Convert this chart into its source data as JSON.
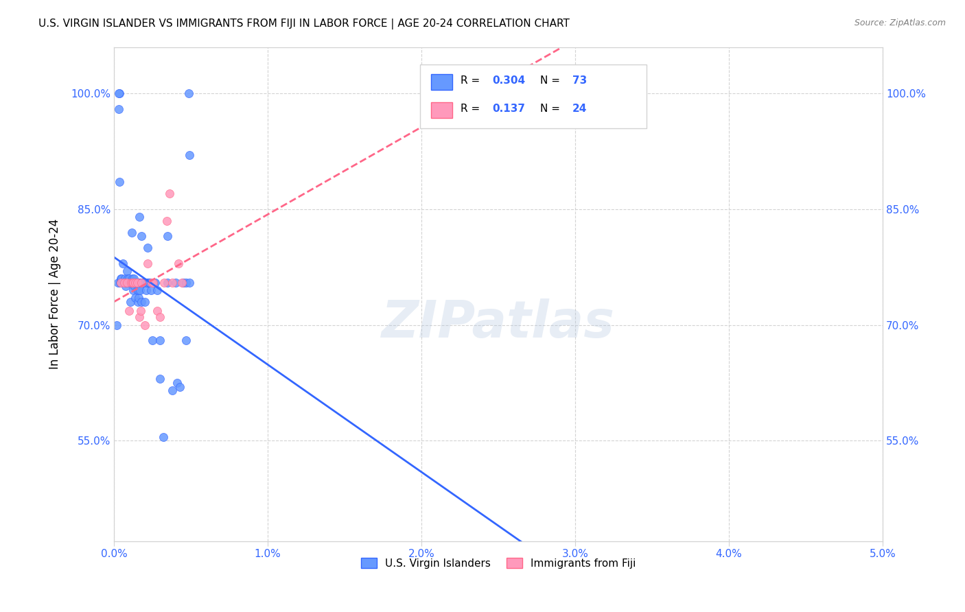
{
  "title": "U.S. VIRGIN ISLANDER VS IMMIGRANTS FROM FIJI IN LABOR FORCE | AGE 20-24 CORRELATION CHART",
  "source": "Source: ZipAtlas.com",
  "ylabel": "In Labor Force | Age 20-24",
  "xlim": [
    0.0,
    0.05
  ],
  "ylim": [
    0.42,
    1.06
  ],
  "x_ticks": [
    0.0,
    0.01,
    0.02,
    0.03,
    0.04,
    0.05
  ],
  "x_tick_labels": [
    "0.0%",
    "1.0%",
    "2.0%",
    "3.0%",
    "4.0%",
    "5.0%"
  ],
  "y_ticks": [
    0.55,
    0.7,
    0.85,
    1.0
  ],
  "y_tick_labels": [
    "55.0%",
    "70.0%",
    "85.0%",
    "100.0%"
  ],
  "blue_color": "#6699ff",
  "pink_color": "#ff99bb",
  "blue_line_color": "#3366ff",
  "pink_line_color": "#ff6688",
  "R_blue": 0.304,
  "N_blue": 73,
  "R_pink": 0.137,
  "N_pink": 24,
  "legend_label_blue": "U.S. Virgin Islanders",
  "legend_label_pink": "Immigrants from Fiji",
  "watermark": "ZIPatlas",
  "blue_x": [
    0.00018,
    0.00025,
    0.0003,
    0.00035,
    0.0004,
    0.00045,
    0.0005,
    0.0006,
    0.0007,
    0.00075,
    0.0008,
    0.0008,
    0.00085,
    0.0009,
    0.001,
    0.001,
    0.00105,
    0.0011,
    0.00115,
    0.0012,
    0.0012,
    0.00125,
    0.0013,
    0.0013,
    0.00135,
    0.0014,
    0.0014,
    0.00145,
    0.0015,
    0.0015,
    0.00155,
    0.0016,
    0.0016,
    0.00165,
    0.0017,
    0.0017,
    0.00175,
    0.0018,
    0.0018,
    0.00185,
    0.0019,
    0.002,
    0.002,
    0.0021,
    0.0022,
    0.0022,
    0.0023,
    0.0023,
    0.0024,
    0.0025,
    0.0026,
    0.0027,
    0.0028,
    0.003,
    0.003,
    0.0032,
    0.0035,
    0.0038,
    0.004,
    0.0041,
    0.0043,
    0.0045,
    0.0047,
    0.00485,
    0.0049,
    0.00165,
    0.0018,
    0.0022,
    0.0035,
    0.0047,
    0.0049,
    0.0003,
    0.00035
  ],
  "blue_y": [
    0.7,
    0.755,
    0.98,
    1.0,
    0.755,
    0.76,
    0.76,
    0.78,
    0.76,
    0.75,
    0.755,
    0.755,
    0.77,
    0.76,
    0.755,
    0.76,
    0.73,
    0.755,
    0.82,
    0.755,
    0.76,
    0.745,
    0.755,
    0.76,
    0.75,
    0.735,
    0.755,
    0.755,
    0.755,
    0.745,
    0.73,
    0.735,
    0.745,
    0.755,
    0.755,
    0.745,
    0.755,
    0.73,
    0.755,
    0.755,
    0.755,
    0.755,
    0.73,
    0.745,
    0.755,
    0.755,
    0.755,
    0.755,
    0.745,
    0.68,
    0.755,
    0.755,
    0.745,
    0.68,
    0.63,
    0.555,
    0.755,
    0.615,
    0.755,
    0.625,
    0.62,
    0.755,
    0.68,
    1.0,
    0.92,
    0.84,
    0.815,
    0.8,
    0.815,
    0.755,
    0.755,
    1.0,
    0.885
  ],
  "pink_x": [
    0.00045,
    0.00065,
    0.00085,
    0.001,
    0.0011,
    0.0012,
    0.00125,
    0.0014,
    0.0015,
    0.00165,
    0.00175,
    0.0018,
    0.002,
    0.0022,
    0.00245,
    0.00255,
    0.0028,
    0.003,
    0.00325,
    0.00345,
    0.0036,
    0.0038,
    0.0042,
    0.0044
  ],
  "pink_y": [
    0.755,
    0.755,
    0.755,
    0.718,
    0.755,
    0.755,
    0.755,
    0.755,
    0.755,
    0.71,
    0.718,
    0.755,
    0.7,
    0.78,
    0.755,
    0.755,
    0.718,
    0.71,
    0.755,
    0.835,
    0.87,
    0.755,
    0.78,
    0.755
  ]
}
